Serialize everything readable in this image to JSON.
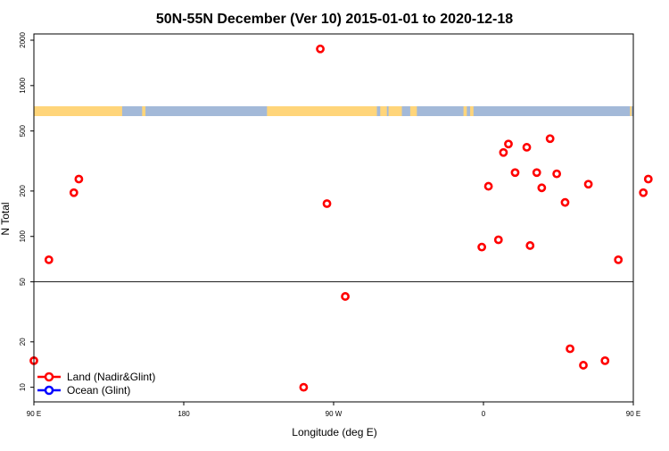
{
  "chart_data": {
    "type": "scatter",
    "title": "50N-55N December (Ver 10)   2015-01-01 to 2020-12-18",
    "xlabel": "Longitude (deg E)",
    "ylabel": "N Total",
    "y_scale": "log",
    "xlim": [
      90,
      450
    ],
    "ylim": [
      8,
      2200
    ],
    "x_ticks": [
      {
        "value": 90,
        "label": "90 E"
      },
      {
        "value": 180,
        "label": "180"
      },
      {
        "value": 270,
        "label": "90 W"
      },
      {
        "value": 360,
        "label": "0"
      },
      {
        "value": 450,
        "label": "90 E"
      },
      {
        "value": 540,
        "label": "180"
      }
    ],
    "y_ticks": [
      {
        "value": 10,
        "label": "10"
      },
      {
        "value": 20,
        "label": "20"
      },
      {
        "value": 50,
        "label": "50"
      },
      {
        "value": 100,
        "label": "100"
      },
      {
        "value": 200,
        "label": "200"
      },
      {
        "value": 500,
        "label": "500"
      },
      {
        "value": 1000,
        "label": "1000"
      },
      {
        "value": 2000,
        "label": "2000"
      }
    ],
    "reference_line": 50,
    "land_ocean_band": {
      "colors": {
        "land": "#FFD57A",
        "ocean": "#A3B9D8"
      },
      "land_segments_lon": [
        [
          90,
          143
        ],
        [
          155,
          157
        ],
        [
          230,
          296
        ],
        [
          298,
          302
        ],
        [
          303,
          311
        ],
        [
          316,
          320
        ],
        [
          348,
          350
        ],
        [
          352,
          354
        ],
        [
          448,
          449
        ],
        [
          455,
          456
        ],
        [
          460,
          464
        ],
        [
          492,
          494
        ],
        [
          518,
          530
        ],
        [
          531,
          536
        ]
      ]
    },
    "legend": {
      "position": "bottom-left"
    },
    "series": [
      {
        "name": "Land (Nadir&Glint)",
        "color": "#FF0000",
        "points": [
          [
            90,
            15
          ],
          [
            99,
            70
          ],
          [
            114,
            195
          ],
          [
            117,
            240
          ],
          [
            252,
            10
          ],
          [
            262,
            1750
          ],
          [
            266,
            165
          ],
          [
            277,
            40
          ],
          [
            359,
            85
          ],
          [
            363,
            215
          ],
          [
            369,
            95
          ],
          [
            372,
            360
          ],
          [
            375,
            410
          ],
          [
            379,
            265
          ],
          [
            386,
            390
          ],
          [
            388,
            87
          ],
          [
            392,
            265
          ],
          [
            395,
            210
          ],
          [
            400,
            445
          ],
          [
            404,
            260
          ],
          [
            409,
            168
          ],
          [
            412,
            18
          ],
          [
            420,
            14
          ],
          [
            423,
            222
          ],
          [
            433,
            15
          ],
          [
            441,
            70
          ],
          [
            456,
            195
          ],
          [
            459,
            240
          ]
        ]
      },
      {
        "name": "Ocean (Glint)",
        "color": "#0000FF",
        "points": []
      }
    ]
  }
}
